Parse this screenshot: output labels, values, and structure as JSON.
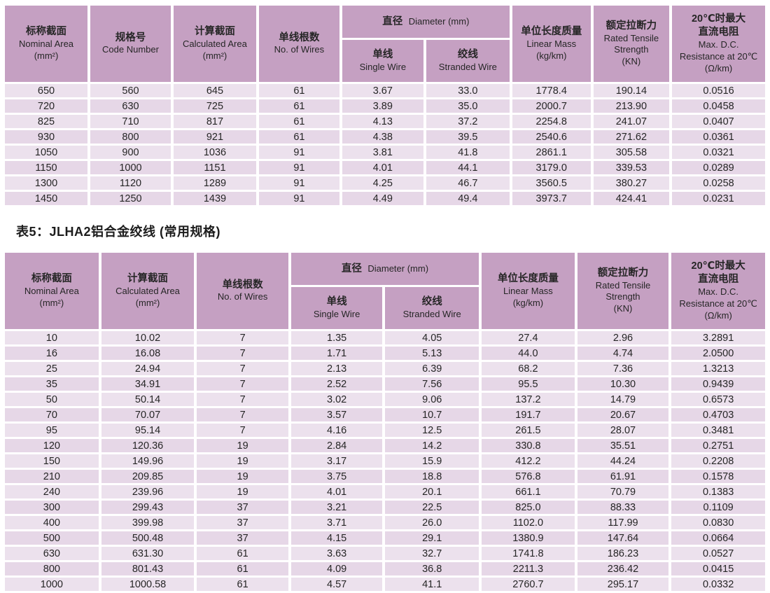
{
  "caption": "表5：JLHA2铝合金绞线 (常用规格)",
  "colors": {
    "header_bg": "#c5a0c2",
    "row_bg": "#ece1ed",
    "row_alt_bg": "#e6d7e7"
  },
  "table1": {
    "header": {
      "nominal": {
        "zh": "标称截面",
        "en": "Nominal Area\n(mm²)"
      },
      "code": {
        "zh": "规格号",
        "en": "Code Number"
      },
      "calculated": {
        "zh": "计算截面",
        "en": "Calculated Area\n(mm²)"
      },
      "wires": {
        "zh": "单线根数",
        "en": "No. of Wires"
      },
      "diameter": {
        "zh": "直径",
        "en": "Diameter (mm)"
      },
      "single": {
        "zh": "单线",
        "en": "Single Wire"
      },
      "stranded": {
        "zh": "绞线",
        "en": "Stranded Wire"
      },
      "mass": {
        "zh": "单位长度质量",
        "en": "Linear Mass\n(kg/km)"
      },
      "tensile": {
        "zh": "额定拉断力",
        "en": "Rated Tensile\nStrength\n(KN)"
      },
      "resistance": {
        "zh": "20℃时最大\n直流电阻",
        "en": "Max. D.C.\nResistance at 20℃\n(Ω/km)"
      }
    },
    "rows": [
      [
        "650",
        "560",
        "645",
        "61",
        "3.67",
        "33.0",
        "1778.4",
        "190.14",
        "0.0516"
      ],
      [
        "720",
        "630",
        "725",
        "61",
        "3.89",
        "35.0",
        "2000.7",
        "213.90",
        "0.0458"
      ],
      [
        "825",
        "710",
        "817",
        "61",
        "4.13",
        "37.2",
        "2254.8",
        "241.07",
        "0.0407"
      ],
      [
        "930",
        "800",
        "921",
        "61",
        "4.38",
        "39.5",
        "2540.6",
        "271.62",
        "0.0361"
      ],
      [
        "1050",
        "900",
        "1036",
        "91",
        "3.81",
        "41.8",
        "2861.1",
        "305.58",
        "0.0321"
      ],
      [
        "1150",
        "1000",
        "1151",
        "91",
        "4.01",
        "44.1",
        "3179.0",
        "339.53",
        "0.0289"
      ],
      [
        "1300",
        "1120",
        "1289",
        "91",
        "4.25",
        "46.7",
        "3560.5",
        "380.27",
        "0.0258"
      ],
      [
        "1450",
        "1250",
        "1439",
        "91",
        "4.49",
        "49.4",
        "3973.7",
        "424.41",
        "0.0231"
      ]
    ]
  },
  "table2": {
    "header": {
      "nominal": {
        "zh": "标称截面",
        "en": "Nominal Area\n(mm²)"
      },
      "calculated": {
        "zh": "计算截面",
        "en": "Calculated Area\n(mm²)"
      },
      "wires": {
        "zh": "单线根数",
        "en": "No. of Wires"
      },
      "diameter": {
        "zh": "直径",
        "en": "Diameter (mm)"
      },
      "single": {
        "zh": "单线",
        "en": "Single Wire"
      },
      "stranded": {
        "zh": "绞线",
        "en": "Stranded Wire"
      },
      "mass": {
        "zh": "单位长度质量",
        "en": "Linear Mass\n(kg/km)"
      },
      "tensile": {
        "zh": "额定拉断力",
        "en": "Rated Tensile\nStrength\n(KN)"
      },
      "resistance": {
        "zh": "20℃时最大\n直流电阻",
        "en": "Max. D.C.\nResistance at 20℃\n(Ω/km)"
      }
    },
    "rows": [
      [
        "10",
        "10.02",
        "7",
        "1.35",
        "4.05",
        "27.4",
        "2.96",
        "3.2891"
      ],
      [
        "16",
        "16.08",
        "7",
        "1.71",
        "5.13",
        "44.0",
        "4.74",
        "2.0500"
      ],
      [
        "25",
        "24.94",
        "7",
        "2.13",
        "6.39",
        "68.2",
        "7.36",
        "1.3213"
      ],
      [
        "35",
        "34.91",
        "7",
        "2.52",
        "7.56",
        "95.5",
        "10.30",
        "0.9439"
      ],
      [
        "50",
        "50.14",
        "7",
        "3.02",
        "9.06",
        "137.2",
        "14.79",
        "0.6573"
      ],
      [
        "70",
        "70.07",
        "7",
        "3.57",
        "10.7",
        "191.7",
        "20.67",
        "0.4703"
      ],
      [
        "95",
        "95.14",
        "7",
        "4.16",
        "12.5",
        "261.5",
        "28.07",
        "0.3481"
      ],
      [
        "120",
        "120.36",
        "19",
        "2.84",
        "14.2",
        "330.8",
        "35.51",
        "0.2751"
      ],
      [
        "150",
        "149.96",
        "19",
        "3.17",
        "15.9",
        "412.2",
        "44.24",
        "0.2208"
      ],
      [
        "210",
        "209.85",
        "19",
        "3.75",
        "18.8",
        "576.8",
        "61.91",
        "0.1578"
      ],
      [
        "240",
        "239.96",
        "19",
        "4.01",
        "20.1",
        "661.1",
        "70.79",
        "0.1383"
      ],
      [
        "300",
        "299.43",
        "37",
        "3.21",
        "22.5",
        "825.0",
        "88.33",
        "0.1109"
      ],
      [
        "400",
        "399.98",
        "37",
        "3.71",
        "26.0",
        "1102.0",
        "117.99",
        "0.0830"
      ],
      [
        "500",
        "500.48",
        "37",
        "4.15",
        "29.1",
        "1380.9",
        "147.64",
        "0.0664"
      ],
      [
        "630",
        "631.30",
        "61",
        "3.63",
        "32.7",
        "1741.8",
        "186.23",
        "0.0527"
      ],
      [
        "800",
        "801.43",
        "61",
        "4.09",
        "36.8",
        "2211.3",
        "236.42",
        "0.0415"
      ],
      [
        "1000",
        "1000.58",
        "61",
        "4.57",
        "41.1",
        "2760.7",
        "295.17",
        "0.0332"
      ]
    ]
  }
}
